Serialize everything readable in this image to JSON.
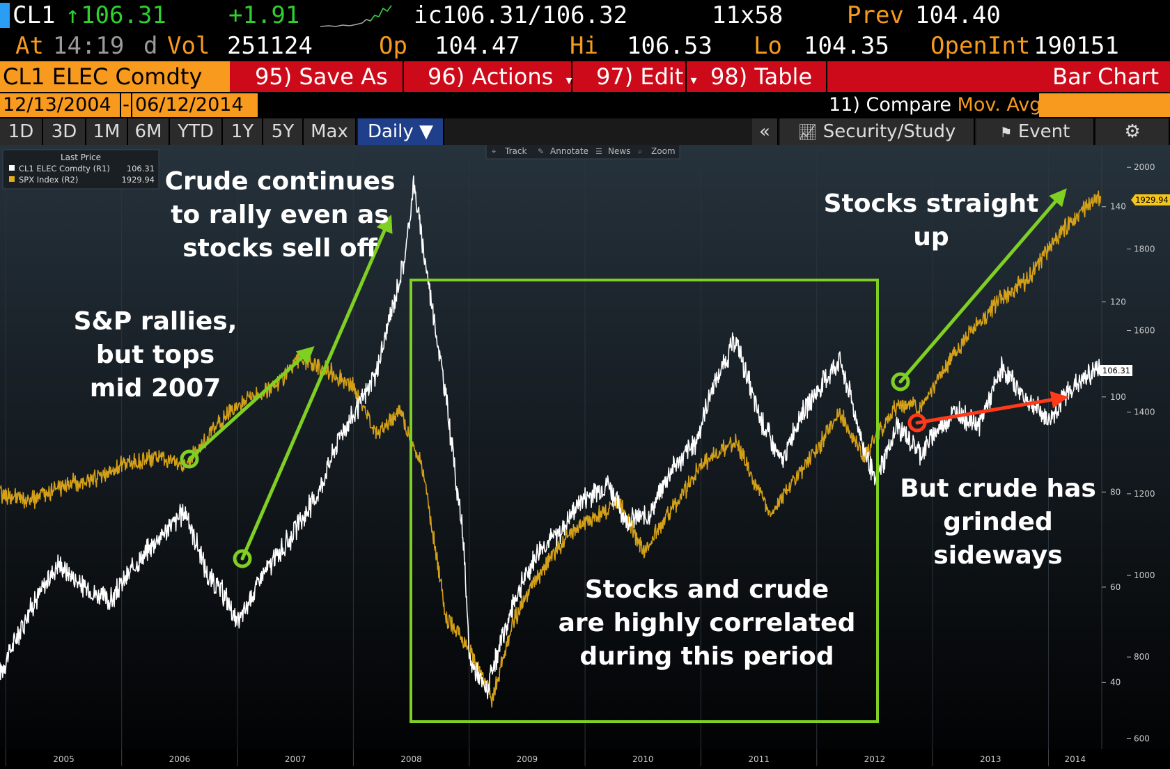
{
  "quote": {
    "ticker": "CL1",
    "arrow": "↑",
    "last": "106.31",
    "change": "+1.91",
    "bid_ask": "ic106.31/106.32",
    "size": "11x58",
    "prev_label": "Prev",
    "prev": "104.40",
    "at_label": "At",
    "time": "14:19",
    "d_label": "d",
    "vol_label": "Vol",
    "volume": "251124",
    "op_label": "Op",
    "open": "104.47",
    "hi_label": "Hi",
    "high": "106.53",
    "lo_label": "Lo",
    "low": "104.35",
    "oi_label": "OpenInt",
    "open_interest": "190151"
  },
  "menu": {
    "security": "CL1 ELEC Comdty",
    "save_as": "95) Save As",
    "actions": "96) Actions",
    "edit": "97) Edit",
    "table": "98) Table",
    "chart_type": "Bar Chart"
  },
  "dates": {
    "start": "12/13/2004",
    "sep": "-",
    "end": "06/12/2014"
  },
  "compare": {
    "label": "11) Compare",
    "mov": "Mov. Avgs"
  },
  "ranges": [
    "1D",
    "3D",
    "1M",
    "6M",
    "YTD",
    "1Y",
    "5Y",
    "Max"
  ],
  "period": "Daily ▼",
  "right_buttons": {
    "collapse": "«",
    "security_study": "Security/Study",
    "event": "Event"
  },
  "chart_toolbar": [
    "Track",
    "Annotate",
    "News",
    "Zoom"
  ],
  "legend": {
    "title": "Last Price",
    "rows": [
      {
        "name": "CL1 ELEC Comdty  (R1)",
        "value": "106.31",
        "color": "#ffffff"
      },
      {
        "name": "SPX Index  (R2)",
        "value": "1929.94",
        "color": "#e0b020"
      }
    ]
  },
  "colors": {
    "crude_line": "#ffffff",
    "spx_line": "#d4a017",
    "arrow_green": "#7fd022",
    "arrow_red": "#ff3a1a",
    "bbg_orange": "#f79a1e",
    "bbg_red": "#cc0a1a"
  },
  "annotations": {
    "crude_rally": [
      "Crude continues",
      "to rally even as",
      "stocks sell off"
    ],
    "sp_tops": [
      "S&P rallies,",
      "but tops",
      "mid 2007"
    ],
    "stocks_up": [
      "Stocks straight",
      "up"
    ],
    "correlated": [
      "Stocks and crude",
      "are highly correlated",
      "during this period"
    ],
    "crude_sideways": [
      "But crude has",
      "grinded",
      "sideways"
    ]
  },
  "chart_data": {
    "type": "line",
    "x_ticks": [
      "2005",
      "2006",
      "2007",
      "2008",
      "2009",
      "2010",
      "2011",
      "2012",
      "2013",
      "2014"
    ],
    "xlim": [
      2004.95,
      2014.46
    ],
    "y_ticks_r1": [
      40,
      60,
      80,
      100,
      120,
      140
    ],
    "y_ticks_r2": [
      600,
      800,
      1000,
      1200,
      1400,
      1600,
      1800,
      2000
    ],
    "ylim_r1": [
      26,
      153
    ],
    "ylim_r2": [
      575,
      2055
    ],
    "last_label_r1": "106.31",
    "last_label_r2": "1929.94",
    "series": [
      {
        "name": "CL1 ELEC Comdty",
        "axis": "R1",
        "x": [
          2004.95,
          2005.2,
          2005.45,
          2005.67,
          2005.9,
          2006.1,
          2006.3,
          2006.55,
          2006.75,
          2006.9,
          2007.0,
          2007.2,
          2007.45,
          2007.7,
          2007.9,
          2008.0,
          2008.2,
          2008.45,
          2008.52,
          2008.6,
          2008.8,
          2008.95,
          2009.0,
          2009.15,
          2009.4,
          2009.6,
          2009.8,
          2009.95,
          2010.2,
          2010.35,
          2010.55,
          2010.75,
          2010.95,
          2011.1,
          2011.3,
          2011.5,
          2011.7,
          2011.85,
          2012.0,
          2012.2,
          2012.4,
          2012.5,
          2012.7,
          2012.9,
          2013.0,
          2013.2,
          2013.4,
          2013.6,
          2013.8,
          2014.0,
          2014.2,
          2014.45
        ],
        "values": [
          42,
          55,
          65,
          60,
          57,
          64,
          70,
          76,
          62,
          58,
          52,
          62,
          70,
          80,
          93,
          96,
          105,
          130,
          145,
          132,
          100,
          70,
          45,
          38,
          58,
          68,
          72,
          78,
          82,
          74,
          75,
          85,
          90,
          102,
          112,
          96,
          86,
          96,
          101,
          108,
          90,
          82,
          94,
          88,
          92,
          97,
          94,
          106,
          100,
          95,
          102,
          106.31
        ]
      },
      {
        "name": "SPX Index",
        "axis": "R2",
        "x": [
          2004.95,
          2005.2,
          2005.5,
          2005.8,
          2006.0,
          2006.3,
          2006.55,
          2006.8,
          2007.0,
          2007.3,
          2007.55,
          2007.8,
          2008.0,
          2008.2,
          2008.4,
          2008.6,
          2008.8,
          2009.0,
          2009.2,
          2009.4,
          2009.6,
          2009.8,
          2010.0,
          2010.3,
          2010.5,
          2010.8,
          2011.0,
          2011.3,
          2011.6,
          2011.8,
          2012.0,
          2012.2,
          2012.4,
          2012.7,
          2012.9,
          2013.0,
          2013.2,
          2013.4,
          2013.6,
          2013.8,
          2014.0,
          2014.2,
          2014.45
        ],
        "values": [
          1200,
          1180,
          1220,
          1240,
          1270,
          1290,
          1270,
          1360,
          1420,
          1460,
          1530,
          1500,
          1460,
          1350,
          1400,
          1260,
          900,
          820,
          700,
          900,
          1000,
          1080,
          1130,
          1180,
          1060,
          1180,
          1270,
          1330,
          1150,
          1230,
          1310,
          1400,
          1290,
          1420,
          1410,
          1460,
          1550,
          1620,
          1680,
          1720,
          1800,
          1870,
          1929.94
        ]
      }
    ]
  }
}
